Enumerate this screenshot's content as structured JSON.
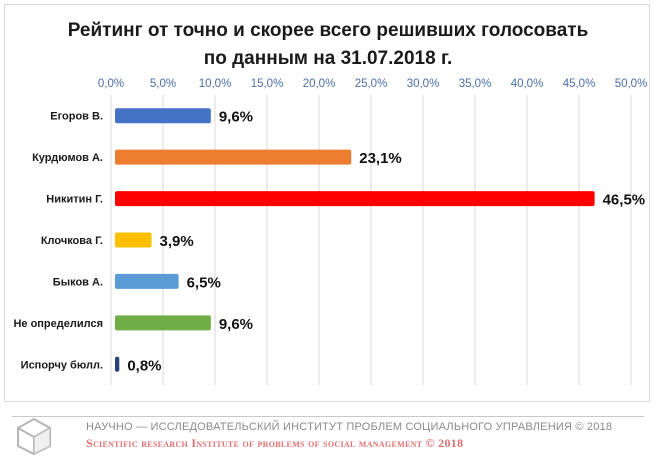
{
  "chart_data": {
    "type": "bar",
    "orientation": "horizontal",
    "title_lines": [
      "Рейтинг от точно и скорее всего решивших голосовать",
      "по данным на 31.07.2018 г."
    ],
    "categories": [
      "Егоров В.",
      "Курдюмов А.",
      "Никитин Г.",
      "Клочкова Г.",
      "Быков А.",
      "Не определился",
      "Испорчу бюлл."
    ],
    "values": [
      9.6,
      23.1,
      46.5,
      3.9,
      6.5,
      9.6,
      0.8
    ],
    "data_labels": [
      "9,6%",
      "23,1%",
      "46,5%",
      "3,9%",
      "6,5%",
      "9,6%",
      "0,8%"
    ],
    "colors": [
      "#4472c4",
      "#ed7d31",
      "#ff0000",
      "#ffc000",
      "#5b9bd5",
      "#70ad47",
      "#264478"
    ],
    "xlim": [
      0,
      50
    ],
    "x_ticks": [
      0,
      5,
      10,
      15,
      20,
      25,
      30,
      35,
      40,
      45,
      50
    ],
    "x_tick_labels": [
      "0,0%",
      "5,0%",
      "10,0%",
      "15,0%",
      "20,0%",
      "25,0%",
      "30,0%",
      "35,0%",
      "40,0%",
      "45,0%",
      "50,0%"
    ],
    "xaxis_position": "top",
    "grid": true,
    "legend": "none"
  },
  "footer": {
    "line_ru": "НАУЧНО — ИССЛЕДОВАТЕЛЬСКИЙ ИНСТИТУТ ПРОБЛЕМ СОЦИАЛЬНОГО УПРАВЛЕНИЯ © 2018",
    "line_en": "Scientific research Institute of problems of social management © 2018",
    "logo": "cube-logo-icon"
  }
}
